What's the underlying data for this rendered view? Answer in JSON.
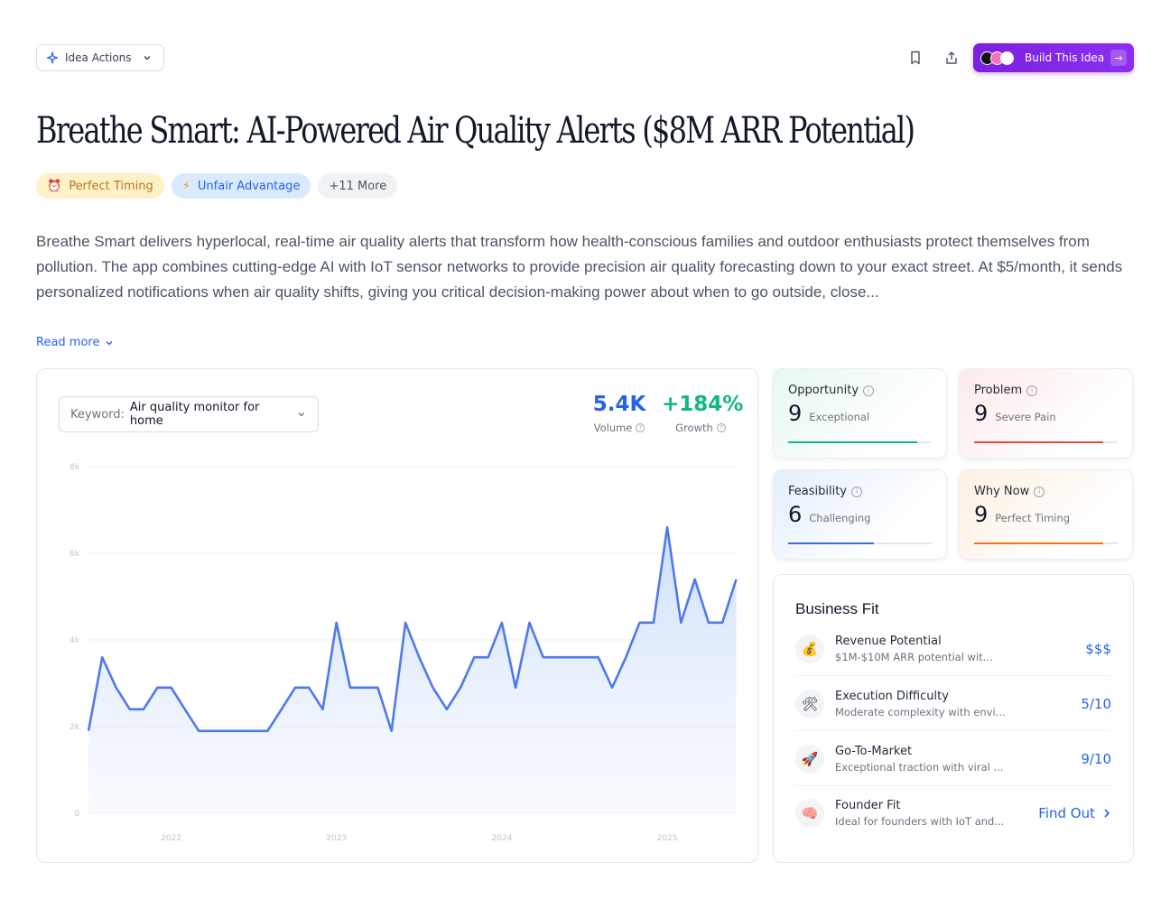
{
  "header": {
    "idea_actions_label": "Idea Actions",
    "build_label": "Build This Idea"
  },
  "title": "Breathe Smart: AI-Powered Air Quality Alerts ($8M ARR Potential)",
  "tags": [
    {
      "icon": "alarm-clock-icon",
      "label": "Perfect Timing"
    },
    {
      "icon": "lightning-icon",
      "label": "Unfair Advantage"
    },
    {
      "label": "+11 More"
    }
  ],
  "description": "Breathe Smart delivers hyperlocal, real-time air quality alerts that transform how health-conscious families and outdoor enthusiasts protect themselves from pollution. The app combines cutting-edge AI with IoT sensor networks to provide precision air quality forecasting down to your exact street. At $5/month, it sends personalized notifications when air quality shifts, giving you critical decision-making power about when to go outside, close...",
  "read_more": "Read more",
  "keyword": {
    "label": "Keyword:",
    "value": "Air quality monitor for home"
  },
  "stats": {
    "volume": {
      "value": "5.4K",
      "label": "Volume"
    },
    "growth": {
      "value": "+184%",
      "label": "Growth"
    }
  },
  "chart_data": {
    "type": "area",
    "y_ticks": [
      "0",
      "2k",
      "4k",
      "6k",
      "8k"
    ],
    "ylim": [
      0,
      8000
    ],
    "x_ticks": [
      {
        "label": "2022",
        "x": 2022.0
      },
      {
        "label": "2023",
        "x": 2023.0
      },
      {
        "label": "2024",
        "x": 2024.0
      },
      {
        "label": "2025",
        "x": 2025.0
      }
    ],
    "xlim": [
      2021.5,
      2025.42
    ],
    "color": "#4f7ae8",
    "series": [
      {
        "x": [
          2021.5,
          2021.583,
          2021.667,
          2021.75,
          2021.833,
          2021.917,
          2022.0,
          2022.083,
          2022.167,
          2022.25,
          2022.333,
          2022.417,
          2022.5,
          2022.583,
          2022.667,
          2022.75,
          2022.833,
          2022.917,
          2023.0,
          2023.083,
          2023.167,
          2023.25,
          2023.333,
          2023.417,
          2023.5,
          2023.583,
          2023.667,
          2023.75,
          2023.833,
          2023.917,
          2024.0,
          2024.083,
          2024.167,
          2024.25,
          2024.333,
          2024.417,
          2024.5,
          2024.583,
          2024.667,
          2024.75,
          2024.833,
          2024.917,
          2025.0,
          2025.083,
          2025.167,
          2025.25,
          2025.333,
          2025.417
        ],
        "values": [
          1900,
          3600,
          2900,
          2400,
          2400,
          2900,
          2900,
          2400,
          1900,
          1900,
          1900,
          1900,
          1900,
          1900,
          2400,
          2900,
          2900,
          2400,
          4400,
          2900,
          2900,
          2900,
          1900,
          4400,
          3600,
          2900,
          2400,
          2900,
          3600,
          3600,
          4400,
          2900,
          4400,
          3600,
          3600,
          3600,
          3600,
          3600,
          2900,
          3600,
          4400,
          4400,
          6600,
          4400,
          5400,
          4400,
          4400,
          5400
        ]
      }
    ]
  },
  "scores": {
    "opportunity": {
      "label": "Opportunity",
      "score": "9",
      "desc": "Exceptional",
      "fill": 0.9,
      "color": "#10b981"
    },
    "problem": {
      "label": "Problem",
      "score": "9",
      "desc": "Severe Pain",
      "fill": 0.9,
      "color": "#ef4444"
    },
    "feasibility": {
      "label": "Feasibility",
      "score": "6",
      "desc": "Challenging",
      "fill": 0.6,
      "color": "#3b6fd4"
    },
    "why_now": {
      "label": "Why Now",
      "score": "9",
      "desc": "Perfect Timing",
      "fill": 0.9,
      "color": "#f97316"
    }
  },
  "business_fit": {
    "title": "Business Fit",
    "items": [
      {
        "icon": "money-bag-icon",
        "title": "Revenue Potential",
        "desc": "$1M-$10M ARR potential wit...",
        "value": "$$$"
      },
      {
        "icon": "tools-icon",
        "title": "Execution Difficulty",
        "desc": "Moderate complexity with envi...",
        "value": "5/10"
      },
      {
        "icon": "rocket-icon",
        "title": "Go-To-Market",
        "desc": "Exceptional traction with viral ...",
        "value": "9/10"
      },
      {
        "icon": "brain-icon",
        "title": "Founder Fit",
        "desc": "Ideal for founders with IoT and...",
        "value": "Find Out"
      }
    ]
  }
}
